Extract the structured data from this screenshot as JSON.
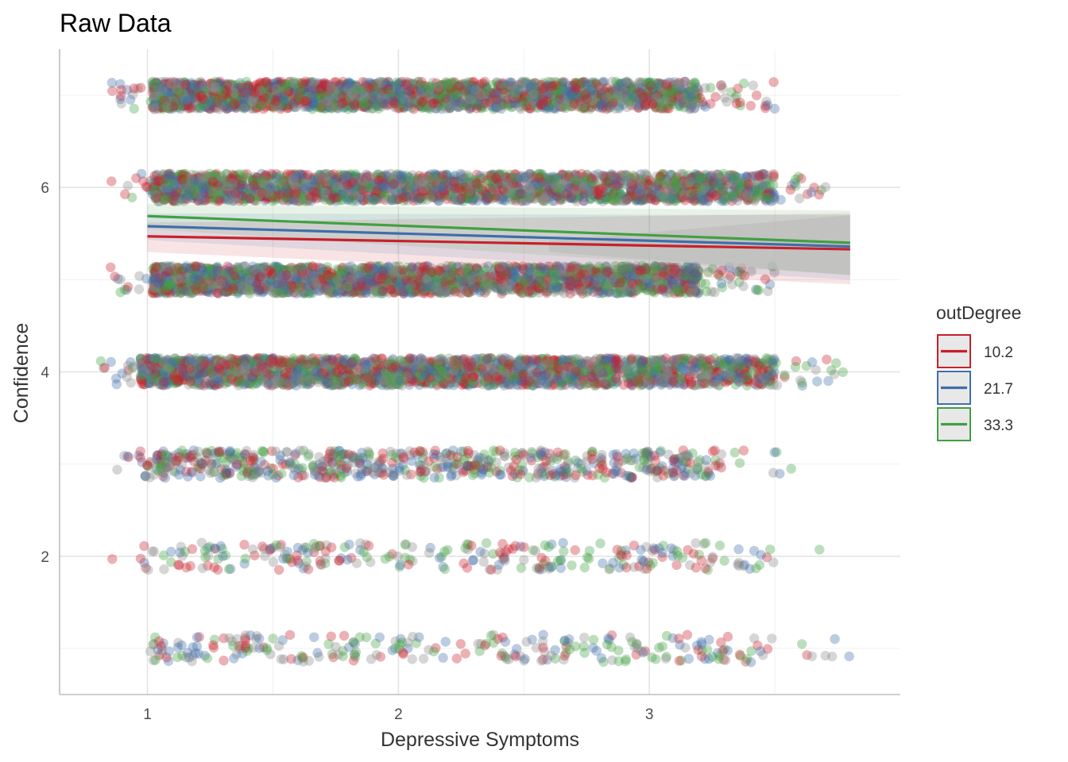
{
  "chart_data": {
    "type": "scatter",
    "title": "Raw Data",
    "xlabel": "Depressive Symptoms",
    "ylabel": "Confidence",
    "xlim": [
      0.65,
      4.0
    ],
    "ylim": [
      0.5,
      7.5
    ],
    "x_ticks": [
      1,
      2,
      3
    ],
    "y_ticks": [
      2,
      4,
      6
    ],
    "grid": true,
    "legend": {
      "title": "outDegree",
      "placement": "right",
      "entries": [
        "10.2",
        "21.7",
        "33.3"
      ]
    },
    "colors": {
      "10.2": "#c8202b",
      "21.7": "#3f6eaa",
      "33.3": "#41a042",
      "band": "#bdbdbd"
    },
    "points": {
      "jitter": 0.15,
      "levels": [
        {
          "y": 7,
          "x_range": [
            0.85,
            3.5
          ],
          "density": "very high"
        },
        {
          "y": 6,
          "x_range": [
            0.85,
            3.8
          ],
          "density": "very high"
        },
        {
          "y": 5,
          "x_range": [
            0.85,
            3.5
          ],
          "density": "very high"
        },
        {
          "y": 4,
          "x_range": [
            0.8,
            3.8
          ],
          "density": "very high"
        },
        {
          "y": 3,
          "x_range": [
            0.8,
            3.6
          ],
          "density": "medium"
        },
        {
          "y": 2,
          "x_range": [
            0.8,
            3.8
          ],
          "density": "low"
        },
        {
          "y": 1,
          "x_range": [
            0.85,
            3.8
          ],
          "density": "low"
        }
      ]
    },
    "series": [
      {
        "name": "10.2",
        "x": [
          1.0,
          3.8
        ],
        "y": [
          5.47,
          5.33
        ],
        "ci_lower": [
          5.3,
          4.95
        ],
        "ci_upper": [
          5.62,
          5.72
        ]
      },
      {
        "name": "21.7",
        "x": [
          1.0,
          3.8
        ],
        "y": [
          5.58,
          5.36
        ],
        "ci_lower": [
          5.43,
          5.0
        ],
        "ci_upper": [
          5.72,
          5.7
        ]
      },
      {
        "name": "33.3",
        "x": [
          1.0,
          3.8
        ],
        "y": [
          5.69,
          5.4
        ],
        "ci_lower": [
          5.55,
          5.05
        ],
        "ci_upper": [
          5.82,
          5.75
        ]
      }
    ]
  }
}
